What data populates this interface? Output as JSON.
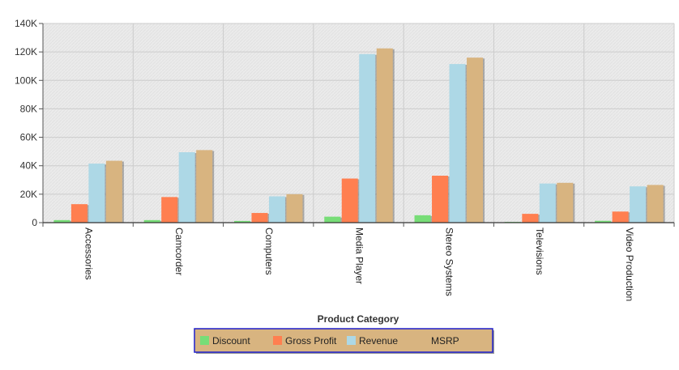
{
  "chart_data": {
    "type": "bar",
    "title": "",
    "xlabel": "Product Category",
    "ylabel": "",
    "categories": [
      "Accessories",
      "Camcorder",
      "Computers",
      "Media Player",
      "Stereo Systems",
      "Televisions",
      "Video Production"
    ],
    "ylim": [
      0,
      140000
    ],
    "yticks": [
      0,
      20000,
      40000,
      60000,
      80000,
      100000,
      120000,
      140000
    ],
    "ytick_labels": [
      "0",
      "20K",
      "40K",
      "60K",
      "80K",
      "100K",
      "120K",
      "140K"
    ],
    "grid": true,
    "legend_position": "bottom-center",
    "series": [
      {
        "name": "Discount",
        "color": "#77dd77",
        "values": [
          1800,
          1800,
          1200,
          4200,
          5200,
          500,
          1300
        ]
      },
      {
        "name": "Gross Profit",
        "color": "#ff7f50",
        "values": [
          13000,
          18000,
          6800,
          31000,
          33000,
          6200,
          7800
        ]
      },
      {
        "name": "Revenue",
        "color": "#add8e6",
        "values": [
          41500,
          49500,
          18500,
          118500,
          111500,
          27500,
          25500
        ]
      },
      {
        "name": "MSRP",
        "color": "#d8b480",
        "values": [
          43500,
          51000,
          20000,
          122500,
          116000,
          28000,
          26500
        ]
      }
    ]
  }
}
